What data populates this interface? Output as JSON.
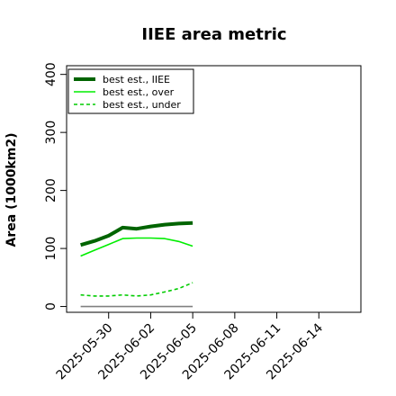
{
  "chart_data": {
    "type": "line",
    "title": "IIEE area metric",
    "ylabel": "Area (1000km2)",
    "xlabel": "",
    "ylim": [
      -10,
      415
    ],
    "yticks": [
      0,
      100,
      200,
      300,
      400
    ],
    "xlim": [
      "2025-05-27",
      "2025-06-17"
    ],
    "xticks": [
      "2025-05-30",
      "2025-06-02",
      "2025-06-05",
      "2025-06-08",
      "2025-06-11",
      "2025-06-14"
    ],
    "legend_position": "top-left",
    "grid": false,
    "series": [
      {
        "name": "best est., IIEE",
        "color": "#006400",
        "style": "solid",
        "width": "thick",
        "x": [
          "2025-05-28",
          "2025-05-29",
          "2025-05-30",
          "2025-05-31",
          "2025-06-01",
          "2025-06-02",
          "2025-06-03",
          "2025-06-04",
          "2025-06-05"
        ],
        "values": [
          106,
          113,
          122,
          136,
          134,
          138,
          141,
          143,
          144
        ]
      },
      {
        "name": "best est., over",
        "color": "#00ee00",
        "style": "solid",
        "width": "normal",
        "x": [
          "2025-05-28",
          "2025-05-29",
          "2025-05-30",
          "2025-05-31",
          "2025-06-01",
          "2025-06-02",
          "2025-06-03",
          "2025-06-04",
          "2025-06-05"
        ],
        "values": [
          87,
          97,
          107,
          117,
          118,
          118,
          117,
          112,
          104
        ]
      },
      {
        "name": "best est., under",
        "color": "#00cc00",
        "style": "dashed",
        "width": "normal",
        "x": [
          "2025-05-28",
          "2025-05-29",
          "2025-05-30",
          "2025-05-31",
          "2025-06-01",
          "2025-06-02",
          "2025-06-03",
          "2025-06-04",
          "2025-06-05"
        ],
        "values": [
          20,
          18,
          18,
          20,
          18,
          20,
          25,
          31,
          41
        ]
      },
      {
        "name": "",
        "color": "#808080",
        "style": "solid",
        "width": "normal",
        "x": [
          "2025-05-28",
          "2025-06-05"
        ],
        "values": [
          0,
          0
        ]
      }
    ]
  }
}
